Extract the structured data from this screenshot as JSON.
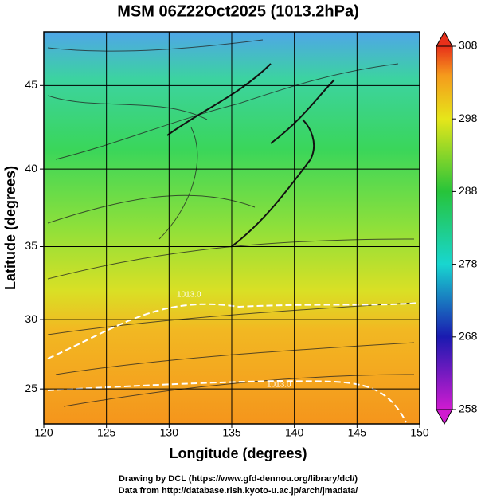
{
  "title": "MSM 06Z22Oct2025 (1013.2hPa)",
  "map": {
    "projection": "mercator",
    "xlabel": "Longitude (degrees)",
    "ylabel": "Latitude  (degrees)",
    "xlim": [
      120,
      150
    ],
    "ylim": [
      22.4,
      48
    ],
    "xticks": [
      120,
      125,
      130,
      135,
      140,
      145,
      150
    ],
    "yticks": [
      25,
      30,
      35,
      40,
      45
    ],
    "grid": true,
    "contour_labels": [
      "1013.0",
      "1013.0"
    ]
  },
  "colorbar": {
    "lim": [
      258,
      308
    ],
    "ticks": [
      258,
      268,
      278,
      288,
      298,
      308
    ]
  },
  "footer": [
    "Drawing by DCL (https://www.gfd-dennou.org/library/dcl/)",
    "Data from http://database.rish.kyoto-u.ac.jp/arch/jmadata/"
  ]
}
